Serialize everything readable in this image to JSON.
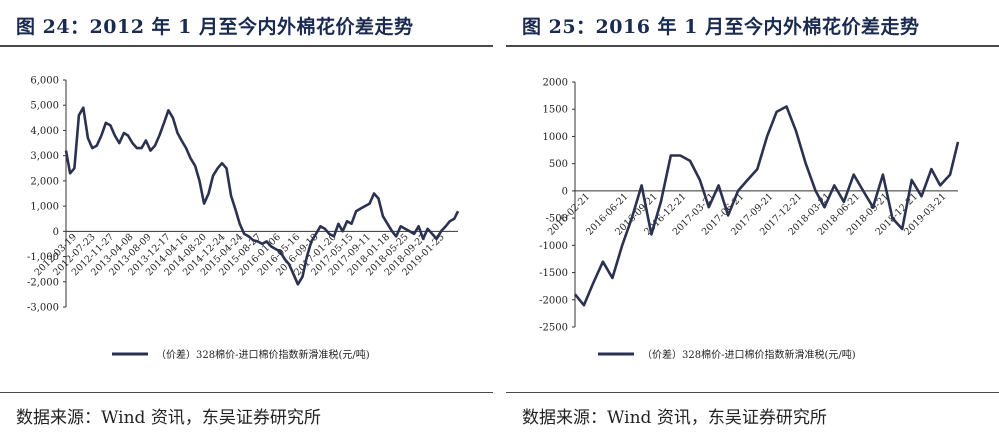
{
  "panels": [
    {
      "title": "图 24：2012 年 1 月至今内外棉花价差走势",
      "source": "数据来源：Wind 资讯，东吴证券研究所"
    },
    {
      "title": "图 25：2016 年 1 月至今内外棉花价差走势",
      "source": "数据来源：Wind 资讯，东吴证券研究所"
    }
  ],
  "chart_data": [
    {
      "type": "line",
      "title": "图 24：2012 年 1 月至今内外棉花价差走势",
      "legend_position": "bottom",
      "grid": false,
      "ylim": [
        -3000,
        6000
      ],
      "yticks": [
        "6,000",
        "5,000",
        "4,000",
        "3,000",
        "2,000",
        "1,000",
        "0",
        "-1,000",
        "-2,000",
        "-3,000"
      ],
      "ytick_values": [
        6000,
        5000,
        4000,
        3000,
        2000,
        1000,
        0,
        -1000,
        -2000,
        -3000
      ],
      "xlim": [
        "2012-01-04",
        "2019-04-26"
      ],
      "xticks": [
        "2012-03-19",
        "2012-07-23",
        "2012-11-27",
        "2013-04-08",
        "2013-08-09",
        "2013-12-17",
        "2014-04-16",
        "2014-08-20",
        "2014-12-24",
        "2015-04-24",
        "2015-08-27",
        "2016-01-06",
        "2016-05-16",
        "2016-09-18",
        "2017-01-20",
        "2017-05-15",
        "2017-09-11",
        "2018-01-18",
        "2018-05-25",
        "2018-09-27",
        "2019-01-25"
      ],
      "color": "#2b3150",
      "series": [
        {
          "name": "（价差）328棉价-进口棉价指数新滑准税(元/吨)",
          "x": [
            "2012-01-04",
            "2012-02-01",
            "2012-03-01",
            "2012-04-01",
            "2012-05-01",
            "2012-06-01",
            "2012-07-01",
            "2012-08-01",
            "2012-09-01",
            "2012-10-01",
            "2012-11-01",
            "2012-12-01",
            "2013-01-01",
            "2013-02-01",
            "2013-03-01",
            "2013-04-01",
            "2013-05-01",
            "2013-06-01",
            "2013-07-01",
            "2013-08-01",
            "2013-09-01",
            "2013-10-01",
            "2013-11-01",
            "2013-12-01",
            "2014-01-01",
            "2014-02-01",
            "2014-03-01",
            "2014-04-01",
            "2014-05-01",
            "2014-06-01",
            "2014-07-01",
            "2014-08-01",
            "2014-09-01",
            "2014-10-01",
            "2014-11-01",
            "2014-12-01",
            "2015-01-01",
            "2015-02-01",
            "2015-03-01",
            "2015-04-01",
            "2015-05-01",
            "2015-06-01",
            "2015-07-01",
            "2015-08-01",
            "2015-09-01",
            "2015-10-01",
            "2015-11-01",
            "2015-12-01",
            "2016-01-01",
            "2016-02-01",
            "2016-03-01",
            "2016-04-01",
            "2016-05-01",
            "2016-06-01",
            "2016-07-01",
            "2016-08-01",
            "2016-09-01",
            "2016-10-01",
            "2016-11-01",
            "2016-12-01",
            "2017-01-01",
            "2017-02-01",
            "2017-03-01",
            "2017-04-01",
            "2017-05-01",
            "2017-06-01",
            "2017-07-01",
            "2017-08-01",
            "2017-09-01",
            "2017-10-01",
            "2017-11-01",
            "2017-12-01",
            "2018-01-01",
            "2018-02-01",
            "2018-03-01",
            "2018-04-01",
            "2018-05-01",
            "2018-06-01",
            "2018-07-01",
            "2018-08-01",
            "2018-09-01",
            "2018-10-01",
            "2018-11-01",
            "2018-12-01",
            "2019-01-01",
            "2019-02-01",
            "2019-03-01",
            "2019-04-01",
            "2019-04-26"
          ],
          "values": [
            3200,
            2300,
            2500,
            4600,
            4900,
            3700,
            3300,
            3400,
            3800,
            4300,
            4200,
            3800,
            3500,
            3900,
            3800,
            3500,
            3300,
            3300,
            3600,
            3200,
            3400,
            3800,
            4300,
            4800,
            4500,
            3900,
            3600,
            3300,
            2900,
            2600,
            2000,
            1100,
            1500,
            2200,
            2500,
            2700,
            2500,
            1400,
            900,
            300,
            -100,
            -200,
            -350,
            -400,
            -500,
            -400,
            -600,
            -700,
            -800,
            -1100,
            -1300,
            -1700,
            -2100,
            -1800,
            -1000,
            -400,
            -100,
            200,
            100,
            -100,
            -200,
            300,
            0,
            400,
            300,
            800,
            900,
            1000,
            1100,
            1500,
            1300,
            600,
            300,
            0,
            -200,
            200,
            100,
            0,
            -100,
            200,
            -300,
            100,
            -100,
            -300,
            0,
            200,
            400,
            500,
            800
          ]
        }
      ]
    },
    {
      "type": "line",
      "title": "图 25：2016 年 1 月至今内外棉花价差走势",
      "legend_position": "bottom",
      "grid": false,
      "ylim": [
        -2500,
        2000
      ],
      "yticks": [
        "2000",
        "1500",
        "1000",
        "500",
        "0",
        "-500",
        "-1000",
        "-1500",
        "-2000",
        "-2500"
      ],
      "ytick_values": [
        2000,
        1500,
        1000,
        500,
        0,
        -500,
        -1000,
        -1500,
        -2000,
        -2500
      ],
      "xlim": [
        "2016-01-04",
        "2019-04-26"
      ],
      "xticks": [
        "2016-02-21",
        "2016-06-21",
        "2016-09-21",
        "2016-12-21",
        "2017-03-21",
        "2017-06-21",
        "2017-09-21",
        "2017-12-21",
        "2018-03-21",
        "2018-06-21",
        "2018-09-21",
        "2018-12-21",
        "2019-03-21"
      ],
      "color": "#2b3150",
      "series": [
        {
          "name": "（价差）328棉价-进口棉价指数新滑准税(元/吨)",
          "x": [
            "2016-01-04",
            "2016-02-01",
            "2016-03-01",
            "2016-04-01",
            "2016-05-01",
            "2016-06-01",
            "2016-07-01",
            "2016-08-01",
            "2016-09-01",
            "2016-10-01",
            "2016-11-01",
            "2016-12-01",
            "2017-01-01",
            "2017-02-01",
            "2017-03-01",
            "2017-04-01",
            "2017-05-01",
            "2017-06-01",
            "2017-07-01",
            "2017-08-01",
            "2017-09-01",
            "2017-10-01",
            "2017-11-01",
            "2017-12-01",
            "2018-01-01",
            "2018-02-01",
            "2018-03-01",
            "2018-04-01",
            "2018-05-01",
            "2018-06-01",
            "2018-07-01",
            "2018-08-01",
            "2018-09-01",
            "2018-10-01",
            "2018-11-01",
            "2018-12-01",
            "2019-01-01",
            "2019-02-01",
            "2019-03-01",
            "2019-04-01",
            "2019-04-26"
          ],
          "values": [
            -1900,
            -2100,
            -1700,
            -1300,
            -1600,
            -1000,
            -500,
            100,
            -800,
            -200,
            650,
            650,
            550,
            200,
            -300,
            100,
            -450,
            0,
            200,
            400,
            1000,
            1450,
            1550,
            1100,
            500,
            0,
            -300,
            100,
            -200,
            300,
            0,
            -300,
            300,
            -500,
            -700,
            200,
            -100,
            400,
            100,
            300,
            900
          ]
        }
      ]
    }
  ]
}
